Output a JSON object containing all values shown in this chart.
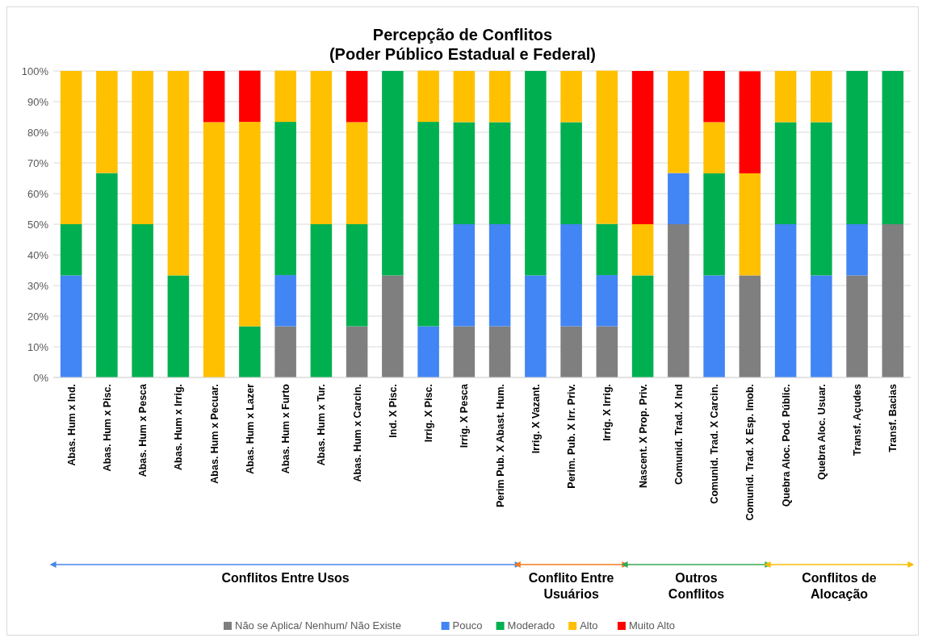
{
  "chart_data": {
    "type": "bar",
    "stacked": true,
    "title": "Percepção de Conflitos",
    "subtitle": "(Poder Público Estadual e Federal)",
    "categories": [
      "Abas. Hum x Ind.",
      "Abas. Hum x Pisc.",
      "Abas. Hum x Pesca",
      "Abas. Hum x Irrig.",
      "Abas. Hum x Pecuar.",
      "Abas. Hum x Lazer",
      "Abas. Hum x Furto",
      "Abas. Hum x Tur.",
      "Abas. Hum x Carcin.",
      "Ind. X Pisc.",
      "Irrig. X Pisc.",
      "Irrig. X Pesca",
      "Perim Pub. X Abast. Hum.",
      "Irrig. X Vazant.",
      "Perim. Pub. X Irr. Priv.",
      "Irrig. X Irrig.",
      "Nascent. X Prop. Priv.",
      "Comunid. Trad. X Ind",
      "Comunid. Trad. X Carcin.",
      "Comunid. Trad. X Esp. Imob.",
      "Quebra Aloc. Pod. Públic.",
      "Quebra Aloc. Usuar.",
      "Transf. Açudes",
      "Transf. Bacias"
    ],
    "series": [
      {
        "name": "Não se Aplica/ Nenhum/ Não Existe",
        "color": "#7f7f7f",
        "values": [
          0,
          0,
          0,
          0,
          0,
          0,
          16.7,
          0,
          16.7,
          33.3,
          0,
          16.7,
          16.7,
          0,
          16.7,
          16.7,
          0,
          50,
          0,
          33.3,
          0,
          0,
          33.3,
          50
        ]
      },
      {
        "name": "Pouco",
        "color": "#4285f4",
        "values": [
          33.3,
          0,
          0,
          0,
          0,
          0,
          16.7,
          0,
          0,
          0,
          16.7,
          33.3,
          33.3,
          33.3,
          33.3,
          16.7,
          0,
          16.7,
          33.3,
          0,
          50,
          33.3,
          16.7,
          0
        ]
      },
      {
        "name": "Moderado",
        "color": "#00b050",
        "values": [
          16.7,
          66.7,
          50,
          33.3,
          0,
          16.7,
          50,
          50,
          33.3,
          66.7,
          66.7,
          33.3,
          33.3,
          66.7,
          33.3,
          16.7,
          33.3,
          0,
          33.3,
          0,
          33.3,
          50,
          50,
          50
        ]
      },
      {
        "name": "Alto",
        "color": "#ffc000",
        "values": [
          50,
          33.3,
          50,
          66.7,
          83.3,
          66.7,
          16.7,
          50,
          33.3,
          0,
          16.7,
          16.7,
          16.7,
          0,
          16.7,
          50,
          16.7,
          33.3,
          16.7,
          33.3,
          16.7,
          16.7,
          0,
          0
        ]
      },
      {
        "name": "Muito Alto",
        "color": "#ff0000",
        "values": [
          0,
          0,
          0,
          0,
          16.7,
          16.7,
          0,
          0,
          16.7,
          0,
          0,
          0,
          0,
          0,
          0,
          0,
          50,
          0,
          16.7,
          33.3,
          0,
          0,
          0,
          0
        ]
      }
    ],
    "ylim": [
      0,
      100
    ],
    "yticks": [
      {
        "value": 0,
        "label": "0%"
      },
      {
        "value": 10,
        "label": "10%"
      },
      {
        "value": 20,
        "label": "20%"
      },
      {
        "value": 30,
        "label": "30%"
      },
      {
        "value": 40,
        "label": "40%"
      },
      {
        "value": 50,
        "label": "50%"
      },
      {
        "value": 60,
        "label": "60%"
      },
      {
        "value": 70,
        "label": "70%"
      },
      {
        "value": 80,
        "label": "80%"
      },
      {
        "value": 90,
        "label": "90%"
      },
      {
        "value": 100,
        "label": "100%"
      }
    ],
    "grid": "y",
    "legend": "bottom",
    "annotations": [
      "Conflitos Entre Usos",
      "Conflito Entre Usuários",
      "Outros Conflitos",
      "Conflitos de Alocação"
    ]
  }
}
